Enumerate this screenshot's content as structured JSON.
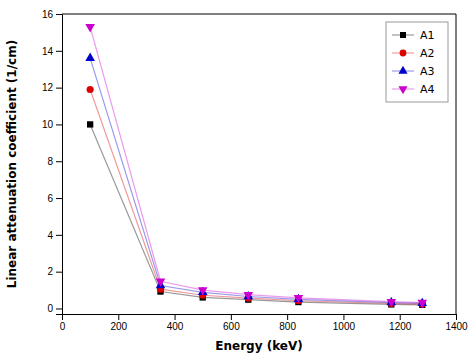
{
  "chart_data": {
    "type": "line",
    "xlabel": "Energy (keV)",
    "ylabel": "Linear attenuation coefficient (1/cm)",
    "x": [
      100,
      350,
      500,
      662,
      840,
      1170,
      1280
    ],
    "series": [
      {
        "name": "A1",
        "color": "#000000",
        "marker": "square",
        "values": [
          10.0,
          0.92,
          0.6,
          0.48,
          0.35,
          0.22,
          0.2
        ]
      },
      {
        "name": "A2",
        "color": "#dd0000",
        "marker": "circle",
        "values": [
          11.9,
          1.05,
          0.72,
          0.56,
          0.42,
          0.27,
          0.24
        ]
      },
      {
        "name": "A3",
        "color": "#0000cc",
        "marker": "triangle-up",
        "values": [
          13.6,
          1.25,
          0.88,
          0.65,
          0.5,
          0.32,
          0.28
        ]
      },
      {
        "name": "A4",
        "color": "#cc00cc",
        "marker": "triangle-down",
        "values": [
          15.3,
          1.48,
          1.0,
          0.75,
          0.58,
          0.37,
          0.32
        ]
      }
    ],
    "xlim": [
      0,
      1400
    ],
    "ylim": [
      -0.3,
      16
    ],
    "xticks": [
      0,
      200,
      400,
      600,
      800,
      1000,
      1200,
      1400
    ],
    "yticks": [
      0,
      2,
      4,
      6,
      8,
      10,
      12,
      14,
      16
    ],
    "legend": "upper-right"
  }
}
